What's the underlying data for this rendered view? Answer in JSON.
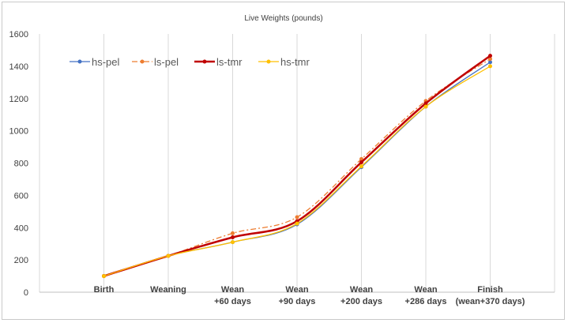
{
  "chart_data": {
    "type": "line",
    "title": "Live Weights (pounds)",
    "xlabel": "",
    "ylabel": "",
    "categories": [
      [
        "Birth"
      ],
      [
        "Weaning"
      ],
      [
        "Wean",
        "+60 days"
      ],
      [
        "Wean",
        "+90 days"
      ],
      [
        "Wean",
        "+200 days"
      ],
      [
        "Wean",
        "+286 days"
      ],
      [
        "Finish",
        "(wean+370 days)"
      ]
    ],
    "ylim": [
      0,
      1600
    ],
    "yticks": [
      0,
      200,
      400,
      600,
      800,
      1000,
      1200,
      1400,
      1600
    ],
    "grid": "vertical",
    "legend_position": "top-left",
    "series": [
      {
        "name": "hs-pel",
        "color": "#4472C4",
        "dash": "solid",
        "marker": "circle",
        "values": [
          100,
          225,
          310,
          420,
          775,
          1150,
          1425
        ]
      },
      {
        "name": "ls-pel",
        "color": "#ED7D31",
        "dash": "dashdot",
        "marker": "circle",
        "values": [
          100,
          225,
          365,
          465,
          825,
          1185,
          1445
        ]
      },
      {
        "name": "ls-tmr",
        "color": "#C00000",
        "dash": "solid",
        "marker": "circle",
        "values": [
          100,
          225,
          340,
          440,
          805,
          1170,
          1465
        ]
      },
      {
        "name": "hs-tmr",
        "color": "#FFC000",
        "dash": "solid",
        "marker": "circle",
        "values": [
          100,
          225,
          310,
          425,
          780,
          1150,
          1400
        ]
      }
    ]
  }
}
